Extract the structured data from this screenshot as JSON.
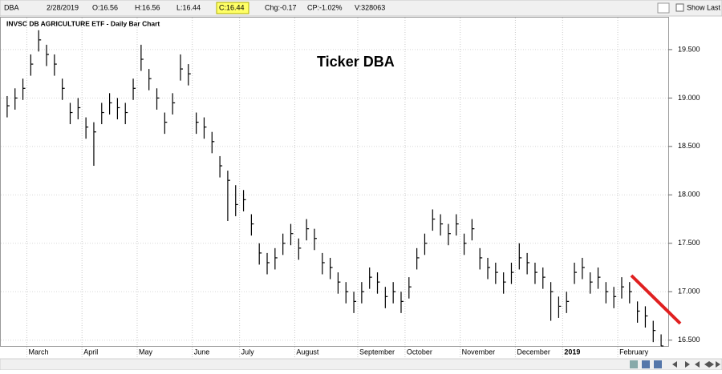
{
  "toolbar": {
    "symbol": "DBA",
    "date": "2/28/2019",
    "open": "O:16.56",
    "high": "H:16.56",
    "low": "L:16.44",
    "close": "C:16.44",
    "change": "Chg:-0.17",
    "change_pct": "CP:-1.02%",
    "volume": "V:328063",
    "show_last": "Show Last"
  },
  "chart_data": {
    "type": "ohlc",
    "title": "INVSC DB AGRICULTURE ETF - Daily Bar Chart",
    "annotation": "Ticker DBA",
    "categories": [
      null,
      null,
      null,
      "March",
      null,
      null,
      null,
      null,
      null,
      null,
      "April",
      null,
      null,
      null,
      null,
      null,
      null,
      "May",
      null,
      null,
      null,
      null,
      null,
      null,
      "June",
      null,
      null,
      null,
      null,
      null,
      "July",
      null,
      null,
      null,
      null,
      null,
      null,
      "August",
      null,
      null,
      null,
      null,
      null,
      null,
      null,
      "September",
      null,
      null,
      null,
      null,
      null,
      "October",
      null,
      null,
      null,
      null,
      null,
      null,
      "November",
      null,
      null,
      null,
      null,
      null,
      null,
      "December",
      null,
      null,
      null,
      null,
      null,
      "2019",
      null,
      null,
      null,
      null,
      null,
      null,
      "February",
      null,
      null,
      null,
      null,
      null
    ],
    "series": [
      {
        "name": "High",
        "values": [
          19.02,
          19.1,
          19.2,
          19.45,
          19.7,
          19.55,
          19.45,
          19.2,
          18.95,
          19.0,
          18.8,
          18.75,
          18.95,
          19.05,
          19.0,
          18.95,
          19.2,
          19.55,
          19.3,
          19.1,
          18.85,
          19.05,
          19.45,
          19.35,
          18.85,
          18.8,
          18.65,
          18.4,
          18.25,
          18.1,
          18.05,
          17.8,
          17.5,
          17.4,
          17.45,
          17.6,
          17.7,
          17.55,
          17.75,
          17.65,
          17.4,
          17.35,
          17.2,
          17.1,
          17.0,
          17.1,
          17.25,
          17.2,
          17.05,
          17.1,
          17.0,
          17.15,
          17.45,
          17.6,
          17.85,
          17.8,
          17.7,
          17.8,
          17.6,
          17.75,
          17.45,
          17.35,
          17.3,
          17.2,
          17.3,
          17.5,
          17.4,
          17.3,
          17.25,
          17.1,
          16.95,
          17.0,
          17.3,
          17.35,
          17.2,
          17.25,
          17.1,
          17.05,
          17.15,
          17.1,
          16.9,
          16.85,
          16.7,
          16.56
        ]
      },
      {
        "name": "Low",
        "values": [
          18.8,
          18.88,
          18.98,
          19.23,
          19.48,
          19.33,
          19.23,
          18.98,
          18.73,
          18.78,
          18.58,
          18.3,
          18.73,
          18.83,
          18.78,
          18.73,
          18.98,
          19.28,
          19.08,
          18.88,
          18.63,
          18.83,
          19.18,
          19.13,
          18.63,
          18.58,
          18.43,
          18.18,
          17.73,
          17.78,
          17.83,
          17.58,
          17.28,
          17.18,
          17.23,
          17.38,
          17.48,
          17.33,
          17.53,
          17.43,
          17.18,
          17.13,
          16.98,
          16.88,
          16.78,
          16.88,
          17.03,
          16.98,
          16.83,
          16.88,
          16.78,
          16.93,
          17.23,
          17.38,
          17.63,
          17.58,
          17.48,
          17.58,
          17.38,
          17.53,
          17.23,
          17.13,
          17.08,
          16.98,
          17.08,
          17.23,
          17.18,
          17.08,
          17.03,
          16.7,
          16.73,
          16.78,
          17.08,
          17.13,
          16.98,
          17.03,
          16.88,
          16.83,
          16.93,
          16.88,
          16.68,
          16.63,
          16.48,
          16.44
        ]
      },
      {
        "name": "Close",
        "values": [
          18.92,
          19.0,
          19.1,
          19.35,
          19.6,
          19.45,
          19.35,
          19.1,
          18.85,
          18.9,
          18.7,
          18.65,
          18.85,
          18.95,
          18.9,
          18.85,
          19.1,
          19.4,
          19.2,
          19.0,
          18.75,
          18.95,
          19.3,
          19.25,
          18.75,
          18.7,
          18.55,
          18.3,
          18.15,
          17.9,
          17.95,
          17.7,
          17.4,
          17.3,
          17.35,
          17.5,
          17.6,
          17.45,
          17.65,
          17.55,
          17.3,
          17.25,
          17.1,
          17.0,
          16.9,
          17.0,
          17.15,
          17.1,
          16.95,
          17.0,
          16.9,
          17.05,
          17.35,
          17.5,
          17.75,
          17.7,
          17.6,
          17.7,
          17.5,
          17.65,
          17.35,
          17.25,
          17.2,
          17.1,
          17.2,
          17.35,
          17.3,
          17.2,
          17.15,
          17.0,
          16.85,
          16.9,
          17.2,
          17.25,
          17.1,
          17.15,
          17.0,
          16.95,
          17.05,
          17.0,
          16.8,
          16.75,
          16.6,
          16.44
        ]
      }
    ],
    "color": "#000000",
    "ylim": [
      16.44,
      19.83
    ],
    "yticks": [
      {
        "value": 16.5,
        "label": "16.500"
      },
      {
        "value": 17.0,
        "label": "17.000"
      },
      {
        "value": 17.5,
        "label": "17.500"
      },
      {
        "value": 18.0,
        "label": "18.000"
      },
      {
        "value": 18.5,
        "label": "18.500"
      },
      {
        "value": 19.0,
        "label": "19.000"
      },
      {
        "value": 19.5,
        "label": "19.500"
      }
    ],
    "grid": true
  }
}
